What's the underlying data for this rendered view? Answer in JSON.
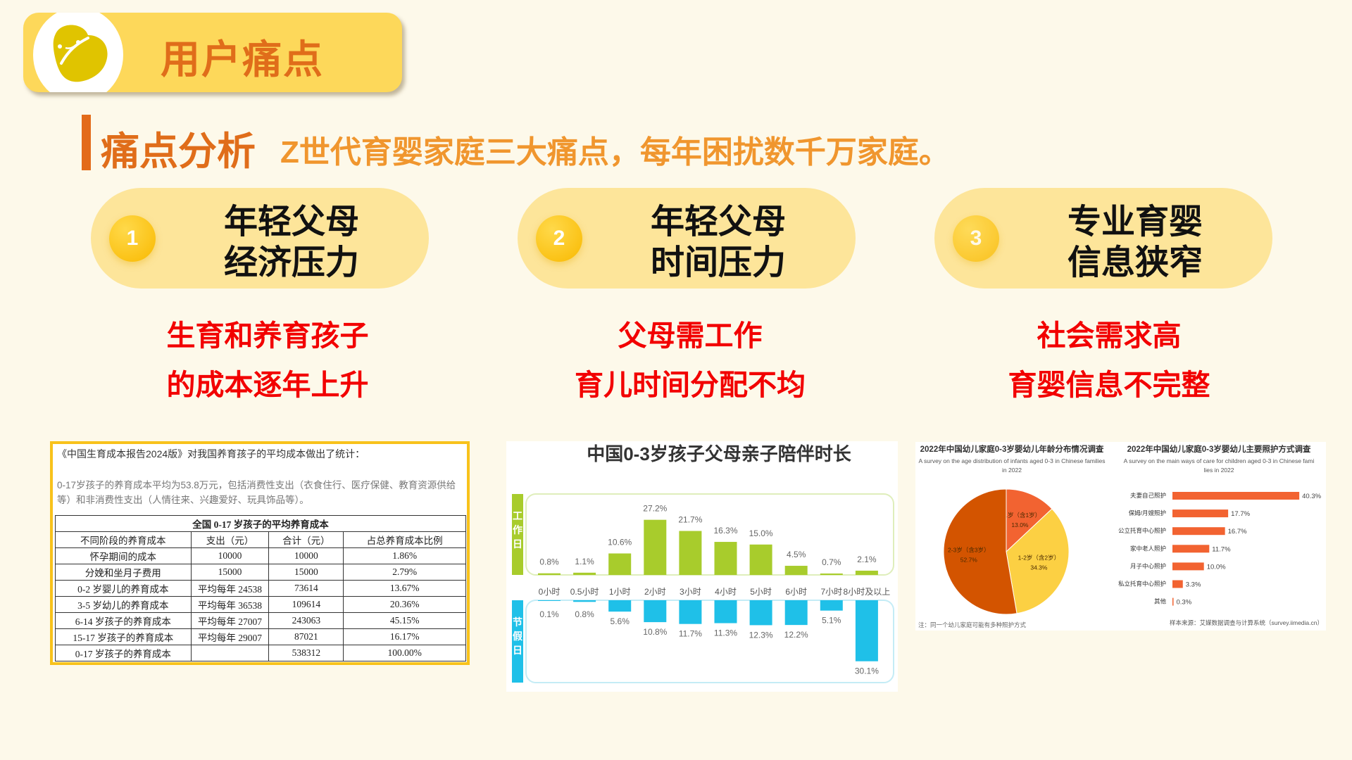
{
  "header": {
    "title": "用户痛点",
    "logo_icon": "yellow-bean-mascot"
  },
  "section": {
    "title": "痛点分析",
    "subtitle": "Z世代育婴家庭三大痛点，每年困扰数千万家庭。"
  },
  "pain_points": [
    {
      "number": "1",
      "title_line1": "年轻父母",
      "title_line2": "经济压力",
      "desc_line1": "生育和养育孩子",
      "desc_line2": "的成本逐年上升"
    },
    {
      "number": "2",
      "title_line1": "年轻父母",
      "title_line2": "时间压力",
      "desc_line1": "父母需工作",
      "desc_line2": "育儿时间分配不均"
    },
    {
      "number": "3",
      "title_line1": "专业育婴",
      "title_line2": "信息狭窄",
      "desc_line1": "社会需求高",
      "desc_line2": "育婴信息不完整"
    }
  ],
  "colors": {
    "accent": "#e06d1a",
    "pill": "#fde59a",
    "banner": "#fdd85a",
    "red": "#f20000",
    "green": "#a8cc2c",
    "blue": "#1fc0e8"
  },
  "cost_report": {
    "intro": "《中国生育成本报告2024版》对我国养育孩子的平均成本做出了统计：",
    "note": "0-17岁孩子的养育成本平均为53.8万元，包括消费性支出（衣食住行、医疗保健、教育资源供给等）和非消费性支出（人情往来、兴趣爱好、玩具饰品等）。",
    "table_title": "全国 0-17 岁孩子的平均养育成本",
    "columns": [
      "不同阶段的养育成本",
      "支出（元）",
      "合计（元）",
      "占总养育成本比例"
    ],
    "rows": [
      [
        "怀孕期间的成本",
        "10000",
        "10000",
        "1.86%"
      ],
      [
        "分娩和坐月子费用",
        "15000",
        "15000",
        "2.79%"
      ],
      [
        "0-2 岁婴儿的养育成本",
        "平均每年 24538",
        "73614",
        "13.67%"
      ],
      [
        "3-5 岁幼儿的养育成本",
        "平均每年 36538",
        "109614",
        "20.36%"
      ],
      [
        "6-14 岁孩子的养育成本",
        "平均每年 27007",
        "243063",
        "45.15%"
      ],
      [
        "15-17 岁孩子的养育成本",
        "平均每年 29007",
        "87021",
        "16.17%"
      ],
      [
        "0-17 岁孩子的养育成本",
        "",
        "538312",
        "100.00%"
      ]
    ]
  },
  "chart_data": [
    {
      "type": "bar",
      "title": "中国0-3岁孩子父母亲子陪伴时长",
      "categories": [
        "0小时",
        "0.5小时",
        "1小时",
        "2小时",
        "3小时",
        "4小时",
        "5小时",
        "6小时",
        "7小时",
        "8小时及以上"
      ],
      "series": [
        {
          "name": "工作日",
          "values": [
            0.8,
            1.1,
            10.6,
            27.2,
            21.7,
            16.3,
            15.0,
            4.5,
            0.7,
            2.1
          ],
          "labels": [
            "0.8%",
            "1.1%",
            "10.6%",
            "27.2%",
            "21.7%",
            "16.3%",
            "15.0%",
            "4.5%",
            "0.7%",
            "2.1%"
          ]
        },
        {
          "name": "节假日",
          "values": [
            0.1,
            0.8,
            5.6,
            10.8,
            11.7,
            11.3,
            12.3,
            12.2,
            5.1,
            30.1
          ],
          "labels": [
            "0.1%",
            "0.8%",
            "5.6%",
            "10.8%",
            "11.7%",
            "11.3%",
            "12.3%",
            "12.2%",
            "5.1%",
            "30.1%"
          ]
        }
      ],
      "unit": "%"
    },
    {
      "type": "pie",
      "title": "2022年中国幼儿家庭0-3岁婴幼儿年龄分布情况调查",
      "subtitle": "A survey on the age distribution of infants aged 0-3 in Chinese families in 2022",
      "slices": [
        {
          "label": "0-1岁（含1岁）",
          "value": 13.0,
          "text": "13.0%",
          "color": "#f26331"
        },
        {
          "label": "1-2岁（含2岁）",
          "value": 34.3,
          "text": "34.3%",
          "color": "#fcd043"
        },
        {
          "label": "2-3岁（含3岁）",
          "value": 52.7,
          "text": "52.7%",
          "color": "#d35400"
        }
      ],
      "footnote": "注：同一个幼儿家庭可能有多种照护方式"
    },
    {
      "type": "bar",
      "orientation": "horizontal",
      "title": "2022年中国幼儿家庭0-3岁婴幼儿主要照护方式调查",
      "subtitle": "A survey on the main ways of care for children aged 0-3 in Chinese families in 2022",
      "categories": [
        "夫妻自己照护",
        "保姆/月嫂照护",
        "公立托育中心照护",
        "家中老人照护",
        "月子中心照护",
        "私立托育中心照护",
        "其他"
      ],
      "values": [
        40.3,
        17.7,
        16.7,
        11.7,
        10.0,
        3.3,
        0.3
      ],
      "labels": [
        "40.3%",
        "17.7%",
        "16.7%",
        "11.7%",
        "10.0%",
        "3.3%",
        "0.3%"
      ],
      "color": "#f26331",
      "source": "样本来源：艾媒数据调查与计算系统（survey.iimedia.cn）"
    }
  ]
}
